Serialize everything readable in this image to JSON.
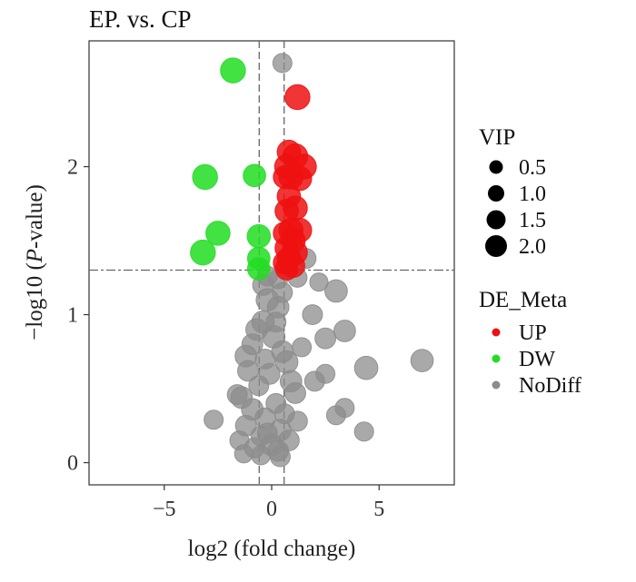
{
  "chart_data": {
    "type": "scatter",
    "title": "EP. vs. CP",
    "xlabel": "log2 (fold change)",
    "ylabel_prefix": "−log10 (",
    "ylabel_italic": "P",
    "ylabel_suffix": "-value)",
    "xlim": [
      -8.5,
      8.5
    ],
    "ylim": [
      -0.15,
      2.85
    ],
    "xticks": [
      -5,
      0,
      5
    ],
    "xtick_labels": [
      "−5",
      "0",
      "5"
    ],
    "yticks": [
      0,
      1,
      2
    ],
    "ytick_labels": [
      "0",
      "1",
      "2"
    ],
    "grid": false,
    "reference_lines": {
      "vertical": [
        -0.58,
        0.58
      ],
      "horizontal": [
        1.301
      ]
    },
    "colors": {
      "UP": "#ee1111",
      "DW": "#22dd22",
      "NoDiff": "#8c8c8c"
    },
    "series": [
      {
        "name": "UP",
        "points": [
          [
            1.2,
            2.47,
            1.9
          ],
          [
            0.8,
            2.1,
            1.7
          ],
          [
            1.1,
            2.07,
            1.9
          ],
          [
            0.7,
            2.0,
            1.8
          ],
          [
            1.5,
            2.0,
            1.9
          ],
          [
            0.9,
            1.93,
            1.8
          ],
          [
            0.6,
            1.93,
            1.6
          ],
          [
            1.3,
            1.92,
            1.8
          ],
          [
            0.8,
            1.8,
            1.7
          ],
          [
            1.1,
            1.72,
            1.8
          ],
          [
            0.7,
            1.7,
            1.7
          ],
          [
            0.9,
            1.57,
            1.8
          ],
          [
            1.3,
            1.57,
            1.8
          ],
          [
            0.6,
            1.55,
            1.6
          ],
          [
            1.0,
            1.5,
            1.8
          ],
          [
            0.7,
            1.45,
            1.7
          ],
          [
            1.1,
            1.42,
            1.8
          ],
          [
            0.8,
            1.38,
            1.7
          ],
          [
            0.6,
            1.35,
            1.6
          ],
          [
            1.0,
            1.33,
            1.7
          ],
          [
            0.7,
            1.31,
            1.6
          ]
        ]
      },
      {
        "name": "DW",
        "points": [
          [
            -1.8,
            2.65,
            1.9
          ],
          [
            -3.1,
            1.93,
            1.9
          ],
          [
            -0.8,
            1.94,
            1.6
          ],
          [
            -2.5,
            1.55,
            1.8
          ],
          [
            -0.6,
            1.53,
            1.7
          ],
          [
            -3.2,
            1.42,
            1.9
          ],
          [
            -0.6,
            1.38,
            1.6
          ],
          [
            -0.6,
            1.31,
            1.6
          ]
        ]
      },
      {
        "name": "NoDiff",
        "points": [
          [
            0.5,
            2.7,
            1.2
          ],
          [
            -0.2,
            1.26,
            1.3
          ],
          [
            0.3,
            1.24,
            1.2
          ],
          [
            -0.4,
            1.2,
            1.4
          ],
          [
            1.6,
            1.38,
            1.3
          ],
          [
            1.2,
            1.25,
            1.2
          ],
          [
            2.2,
            1.22,
            1.1
          ],
          [
            3.0,
            1.16,
            1.6
          ],
          [
            1.9,
            1.0,
            1.3
          ],
          [
            3.4,
            0.89,
            1.5
          ],
          [
            2.5,
            0.84,
            1.4
          ],
          [
            1.4,
            0.78,
            1.2
          ],
          [
            4.4,
            0.64,
            1.7
          ],
          [
            7.0,
            0.69,
            1.6
          ],
          [
            2.5,
            0.6,
            1.2
          ],
          [
            2.0,
            0.55,
            1.3
          ],
          [
            3.4,
            0.37,
            1.2
          ],
          [
            3.0,
            0.32,
            1.2
          ],
          [
            4.3,
            0.21,
            1.2
          ],
          [
            -1.2,
            0.72,
            1.5
          ],
          [
            -1.6,
            0.46,
            1.3
          ],
          [
            -2.7,
            0.29,
            1.2
          ],
          [
            -1.5,
            0.15,
            1.2
          ],
          [
            -1.3,
            0.06,
            1.1
          ],
          [
            -0.5,
            0.05,
            1.2
          ],
          [
            0.4,
            0.04,
            1.3
          ],
          [
            -0.2,
            1.1,
            1.6
          ],
          [
            0.3,
            1.05,
            1.5
          ],
          [
            -0.4,
            0.95,
            1.6
          ],
          [
            -0.7,
            0.9,
            1.5
          ],
          [
            0.1,
            0.85,
            1.6
          ],
          [
            -0.9,
            0.8,
            1.4
          ],
          [
            0.5,
            0.75,
            1.5
          ],
          [
            -0.3,
            0.7,
            1.3
          ],
          [
            0.7,
            0.68,
            1.6
          ],
          [
            -1.1,
            0.62,
            1.4
          ],
          [
            0.9,
            0.55,
            1.5
          ],
          [
            -0.6,
            0.52,
            1.3
          ],
          [
            1.1,
            0.47,
            1.4
          ],
          [
            -1.4,
            0.44,
            1.5
          ],
          [
            0.2,
            0.4,
            1.3
          ],
          [
            -0.9,
            0.36,
            1.5
          ],
          [
            0.6,
            0.33,
            1.3
          ],
          [
            -0.3,
            0.3,
            1.4
          ],
          [
            1.2,
            0.28,
            1.3
          ],
          [
            -1.2,
            0.25,
            1.4
          ],
          [
            0.4,
            0.22,
            1.5
          ],
          [
            -0.5,
            0.18,
            1.3
          ],
          [
            0.8,
            0.15,
            1.4
          ],
          [
            0.0,
            0.12,
            1.5
          ],
          [
            -0.8,
            0.1,
            1.3
          ],
          [
            0.3,
            0.08,
            1.4
          ],
          [
            -0.2,
            0.2,
            1.3
          ],
          [
            0.5,
            1.15,
            1.3
          ],
          [
            -0.1,
            0.6,
            1.4
          ],
          [
            0.2,
            0.95,
            1.3
          ]
        ]
      }
    ],
    "legend_size": {
      "title": "VIP",
      "labels": [
        "0.5",
        "1.0",
        "1.5",
        "2.0"
      ],
      "values": [
        0.5,
        1.0,
        1.5,
        2.0
      ]
    },
    "legend_color": {
      "title": "DE_Meta",
      "labels": [
        "UP",
        "DW",
        "NoDiff"
      ]
    }
  }
}
